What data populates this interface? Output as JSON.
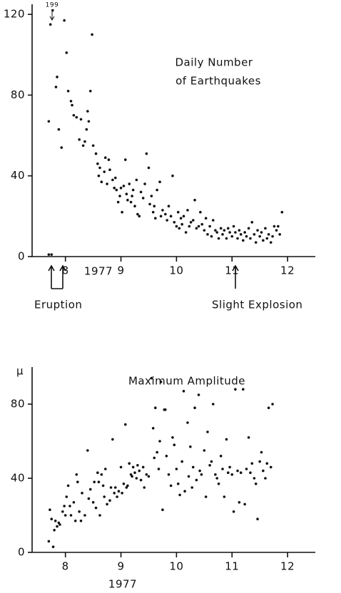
{
  "chart_data": [
    {
      "type": "scatter",
      "title": [
        "Daily Number",
        "of Earthquakes"
      ],
      "xlabel": "1977",
      "annotations": [
        "199",
        "Eruption",
        "Slight Explosion"
      ],
      "xlim": [
        7.4,
        12.5
      ],
      "xticks": [
        8,
        9,
        10,
        11,
        12
      ],
      "ylim": [
        0,
        125
      ],
      "yticks": [
        0,
        40,
        80,
        120
      ],
      "color": "#111",
      "x": [
        7.7,
        7.75,
        7.7,
        7.73,
        7.77,
        7.85,
        7.83,
        7.88,
        7.93,
        7.98,
        8.02,
        8.05,
        8.1,
        8.12,
        8.15,
        8.2,
        8.25,
        8.28,
        8.32,
        8.35,
        8.38,
        8.4,
        8.42,
        8.45,
        8.48,
        8.5,
        8.55,
        8.58,
        8.6,
        8.62,
        8.65,
        8.7,
        8.72,
        8.75,
        8.78,
        8.8,
        8.85,
        8.88,
        8.9,
        8.92,
        8.95,
        8.98,
        9.0,
        9.02,
        9.05,
        9.08,
        9.1,
        9.12,
        9.15,
        9.18,
        9.2,
        9.22,
        9.25,
        9.28,
        9.3,
        9.33,
        9.36,
        9.4,
        9.43,
        9.46,
        9.5,
        9.52,
        9.55,
        9.58,
        9.6,
        9.62,
        9.65,
        9.7,
        9.72,
        9.75,
        9.8,
        9.83,
        9.86,
        9.9,
        9.93,
        9.96,
        10.0,
        10.03,
        10.05,
        10.08,
        10.1,
        10.13,
        10.17,
        10.2,
        10.23,
        10.26,
        10.3,
        10.33,
        10.36,
        10.4,
        10.43,
        10.46,
        10.5,
        10.53,
        10.56,
        10.6,
        10.63,
        10.66,
        10.7,
        10.73,
        10.76,
        10.8,
        10.83,
        10.86,
        10.9,
        10.93,
        10.96,
        11.0,
        11.03,
        11.06,
        11.1,
        11.13,
        11.16,
        11.2,
        11.23,
        11.26,
        11.3,
        11.33,
        11.36,
        11.4,
        11.43,
        11.46,
        11.5,
        11.53,
        11.56,
        11.6,
        11.63,
        11.66,
        11.7,
        11.73,
        11.76,
        11.8,
        11.83,
        11.86,
        11.9
      ],
      "values": [
        1,
        1,
        67,
        115,
        122,
        89,
        84,
        63,
        54,
        117,
        101,
        82,
        77,
        75,
        70,
        69,
        58,
        68,
        55,
        57,
        63,
        72,
        67,
        82,
        110,
        55,
        51,
        46,
        40,
        44,
        37,
        42,
        49,
        36,
        48,
        43,
        38,
        34,
        39,
        33,
        27,
        30,
        34,
        22,
        35,
        48,
        31,
        28,
        36,
        27,
        30,
        33,
        25,
        38,
        21,
        20,
        32,
        29,
        36,
        51,
        44,
        26,
        30,
        22,
        25,
        19,
        33,
        37,
        20,
        23,
        21,
        18,
        25,
        20,
        40,
        17,
        15,
        22,
        14,
        19,
        16,
        20,
        12,
        23,
        15,
        17,
        18,
        28,
        14,
        15,
        22,
        16,
        13,
        19,
        11,
        15,
        10,
        18,
        13,
        12,
        9,
        14,
        11,
        13,
        9,
        14,
        12,
        10,
        15,
        12,
        9,
        13,
        11,
        8,
        12,
        10,
        14,
        9,
        17,
        11,
        7,
        13,
        10,
        12,
        8,
        14,
        9,
        11,
        7,
        10,
        15,
        13,
        15,
        11,
        22
      ]
    },
    {
      "type": "scatter",
      "title": "Maximum Amplitude",
      "xlabel": "1977",
      "ylabel": "μ",
      "xlim": [
        7.4,
        12.5
      ],
      "xticks": [
        8,
        9,
        10,
        11,
        12
      ],
      "ylim": [
        0,
        100
      ],
      "yticks": [
        0,
        40,
        80
      ],
      "color": "#111",
      "x": [
        7.7,
        7.72,
        7.75,
        7.78,
        7.8,
        7.82,
        7.85,
        7.88,
        7.9,
        7.95,
        7.98,
        8.0,
        8.02,
        8.05,
        8.08,
        8.1,
        8.15,
        8.18,
        8.2,
        8.22,
        8.25,
        8.28,
        8.3,
        8.35,
        8.4,
        8.42,
        8.45,
        8.5,
        8.52,
        8.55,
        8.58,
        8.6,
        8.62,
        8.65,
        8.68,
        8.7,
        8.72,
        8.75,
        8.8,
        8.82,
        8.85,
        8.88,
        8.9,
        8.93,
        8.96,
        9.0,
        9.02,
        9.05,
        9.08,
        9.1,
        9.12,
        9.15,
        9.18,
        9.2,
        9.22,
        9.25,
        9.28,
        9.3,
        9.33,
        9.36,
        9.4,
        9.42,
        9.46,
        9.5,
        9.55,
        9.58,
        9.6,
        9.62,
        9.65,
        9.68,
        9.7,
        9.72,
        9.75,
        9.78,
        9.8,
        9.82,
        9.86,
        9.9,
        9.93,
        9.96,
        10.0,
        10.03,
        10.06,
        10.1,
        10.13,
        10.15,
        10.2,
        10.22,
        10.25,
        10.28,
        10.3,
        10.33,
        10.36,
        10.4,
        10.42,
        10.45,
        10.5,
        10.53,
        10.56,
        10.6,
        10.63,
        10.66,
        10.7,
        10.73,
        10.76,
        10.8,
        10.83,
        10.86,
        10.9,
        10.93,
        10.96,
        11.0,
        11.03,
        11.06,
        11.1,
        11.13,
        11.16,
        11.2,
        11.23,
        11.26,
        11.3,
        11.33,
        11.36,
        11.4,
        11.43,
        11.46,
        11.5,
        11.53,
        11.56,
        11.6,
        11.63,
        11.66,
        11.7,
        11.73
      ],
      "values": [
        6,
        23,
        18,
        3,
        12,
        17,
        14,
        16,
        15,
        22,
        25,
        20,
        30,
        36,
        25,
        20,
        27,
        17,
        42,
        38,
        22,
        17,
        32,
        20,
        55,
        29,
        34,
        27,
        38,
        24,
        43,
        38,
        20,
        42,
        36,
        30,
        45,
        26,
        28,
        35,
        61,
        32,
        35,
        30,
        33,
        46,
        32,
        37,
        69,
        35,
        36,
        48,
        42,
        41,
        46,
        43,
        40,
        47,
        44,
        39,
        46,
        35,
        42,
        41,
        94,
        67,
        51,
        78,
        54,
        45,
        60,
        92,
        23,
        77,
        77,
        52,
        42,
        36,
        62,
        58,
        45,
        37,
        31,
        49,
        87,
        33,
        70,
        41,
        57,
        35,
        46,
        78,
        39,
        85,
        44,
        42,
        55,
        30,
        65,
        47,
        49,
        80,
        42,
        40,
        37,
        52,
        45,
        30,
        61,
        43,
        46,
        42,
        22,
        88,
        44,
        27,
        43,
        88,
        26,
        45,
        62,
        43,
        48,
        40,
        37,
        18,
        49,
        54,
        44,
        40,
        48,
        78,
        46,
        80
      ]
    }
  ]
}
